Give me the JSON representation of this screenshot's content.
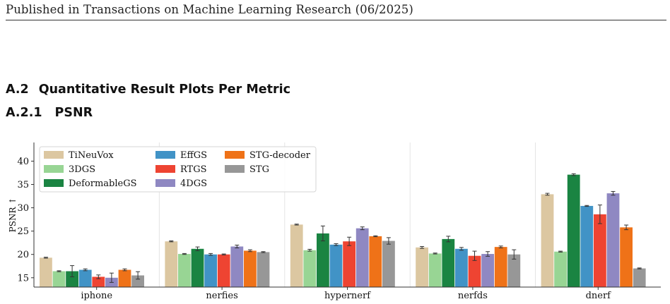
{
  "page": {
    "header": "Published in Transactions on Machine Learning Research (06/2025)",
    "section": {
      "number": "A.2",
      "title": "Quantitative Result Plots Per Metric"
    },
    "subsection": {
      "number": "A.2.1",
      "title": "PSNR"
    }
  },
  "chart_data": {
    "type": "bar",
    "title": "",
    "xlabel": "",
    "ylabel": "PSNR ↑",
    "ylim": [
      13,
      44
    ],
    "yticks": [
      15,
      20,
      25,
      30,
      35,
      40
    ],
    "grid": "vertical separators between groups",
    "legend_position": "top-left",
    "categories": [
      "iphone",
      "nerfies",
      "hypernerf",
      "nerfds",
      "dnerf"
    ],
    "series": [
      {
        "name": "TiNeuVox",
        "color": "#dcc7a1",
        "values": [
          19.3,
          22.8,
          26.4,
          21.5,
          32.9
        ],
        "err": [
          0.1,
          0.1,
          0.1,
          0.2,
          0.2
        ]
      },
      {
        "name": "3DGS",
        "color": "#98d594",
        "values": [
          16.4,
          20.1,
          20.9,
          20.2,
          20.6
        ],
        "err": [
          0.1,
          0.1,
          0.2,
          0.1,
          0.1
        ]
      },
      {
        "name": "DeformableGS",
        "color": "#1a8442",
        "values": [
          16.4,
          21.2,
          24.5,
          23.3,
          37.1
        ],
        "err": [
          1.2,
          0.4,
          1.6,
          0.6,
          0.2
        ]
      },
      {
        "name": "EffGS",
        "color": "#4193c6",
        "values": [
          16.7,
          20.0,
          22.1,
          21.2,
          30.4
        ],
        "err": [
          0.2,
          0.2,
          0.2,
          0.3,
          0.1
        ]
      },
      {
        "name": "RTGS",
        "color": "#ee4432",
        "values": [
          15.2,
          20.0,
          22.8,
          19.7,
          28.6
        ],
        "err": [
          0.4,
          0.1,
          0.9,
          1.0,
          2.0
        ]
      },
      {
        "name": "4DGS",
        "color": "#8f88c2",
        "values": [
          15.0,
          21.7,
          25.6,
          20.1,
          33.1
        ],
        "err": [
          1.0,
          0.3,
          0.3,
          0.5,
          0.4
        ]
      },
      {
        "name": "STG-decoder",
        "color": "#ef7218",
        "values": [
          16.7,
          20.8,
          23.9,
          21.6,
          25.8
        ],
        "err": [
          0.2,
          0.2,
          0.1,
          0.2,
          0.5
        ]
      },
      {
        "name": "STG",
        "color": "#979797",
        "values": [
          15.5,
          20.5,
          22.9,
          20.0,
          17.0
        ],
        "err": [
          0.8,
          0.1,
          0.7,
          1.0,
          0.1
        ]
      }
    ]
  }
}
